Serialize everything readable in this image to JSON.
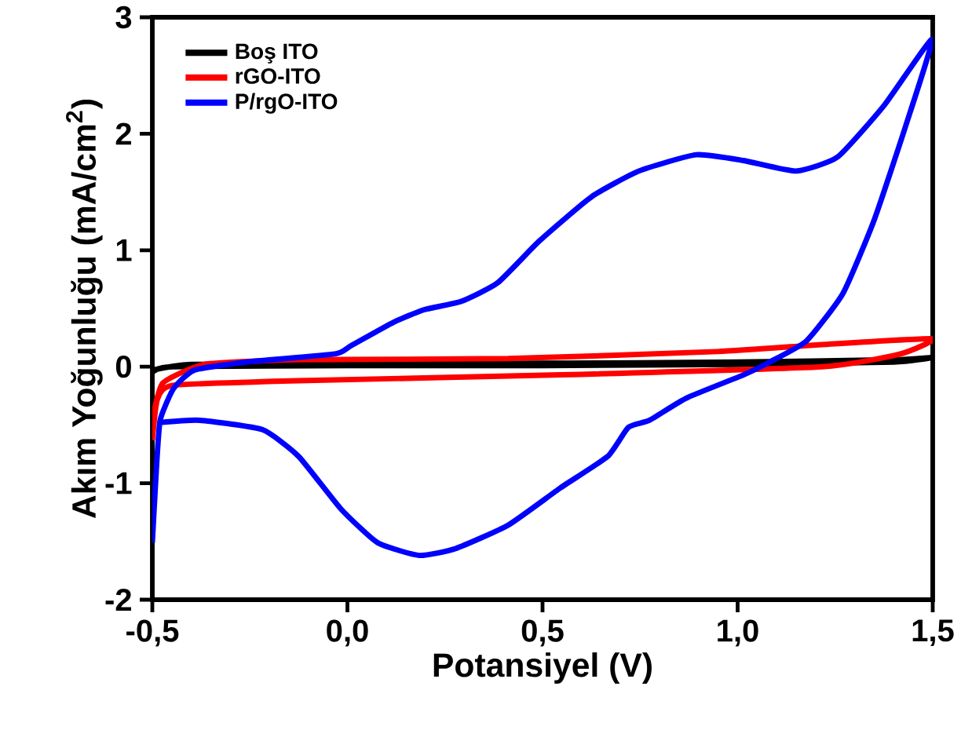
{
  "chart_data": {
    "type": "line",
    "xlabel": "Potansiyel (V)",
    "ylabel": "Akım Yoğunluğu (mA/cm$^{2}$)",
    "xlim": [
      -0.5,
      1.5
    ],
    "ylim": [
      -2,
      3
    ],
    "xticks": [
      {
        "value": -0.5,
        "label": "-0,5"
      },
      {
        "value": 0,
        "label": "0,0"
      },
      {
        "value": 0.5,
        "label": "0,5"
      },
      {
        "value": 1,
        "label": "1,0"
      },
      {
        "value": 1.5,
        "label": "1,5"
      }
    ],
    "yticks": [
      -2,
      -1,
      0,
      1,
      2,
      3
    ],
    "legend": "top left",
    "marker": "none",
    "line_style": "solid",
    "grid": false,
    "series": [
      {
        "name": "Boş ITO",
        "color": "#000000",
        "x": [
          -0.5,
          -0.45,
          0.0,
          0.5,
          1.0,
          1.4,
          1.5,
          1.4,
          1.0,
          0.5,
          0.0,
          -0.4,
          -0.5
        ],
        "values": [
          -0.05,
          0.0,
          0.01,
          0.01,
          0.02,
          0.04,
          0.08,
          0.06,
          0.04,
          0.03,
          0.03,
          0.02,
          -0.03
        ]
      },
      {
        "name": "rGO-ITO",
        "color": "#ff0000",
        "x": [
          -0.5,
          -0.487,
          -0.447,
          -0.125,
          0.546,
          1.216,
          1.417,
          1.498,
          1.216,
          0.948,
          0.412,
          -0.125,
          -0.366,
          -0.473,
          -0.5
        ],
        "values": [
          -0.63,
          -0.28,
          -0.16,
          -0.12,
          -0.07,
          0.0,
          0.11,
          0.24,
          0.19,
          0.13,
          0.07,
          0.06,
          0.02,
          -0.14,
          -0.46
        ]
      },
      {
        "name": "P/rgO-ITO",
        "color": "#0000ff",
        "x": [
          -0.5,
          -0.49,
          -0.48,
          -0.446,
          -0.393,
          -0.259,
          -0.032,
          0.009,
          0.117,
          0.197,
          0.291,
          0.385,
          0.492,
          0.626,
          0.747,
          0.894,
          1.015,
          1.149,
          1.256,
          1.377,
          1.498,
          1.431,
          1.35,
          1.27,
          1.176,
          1.082,
          1.015,
          0.868,
          0.774,
          0.72,
          0.667,
          0.546,
          0.412,
          0.278,
          0.184,
          0.077,
          -0.017,
          -0.125,
          -0.218,
          -0.379,
          -0.48
        ],
        "values": [
          -1.51,
          -0.9,
          -0.46,
          -0.19,
          -0.03,
          0.04,
          0.11,
          0.18,
          0.38,
          0.49,
          0.56,
          0.72,
          1.08,
          1.46,
          1.68,
          1.82,
          1.77,
          1.68,
          1.8,
          2.25,
          2.81,
          2.07,
          1.26,
          0.63,
          0.22,
          0.04,
          -0.07,
          -0.27,
          -0.46,
          -0.52,
          -0.77,
          -1.04,
          -1.36,
          -1.56,
          -1.62,
          -1.51,
          -1.22,
          -0.77,
          -0.54,
          -0.46,
          -0.48
        ]
      }
    ]
  }
}
